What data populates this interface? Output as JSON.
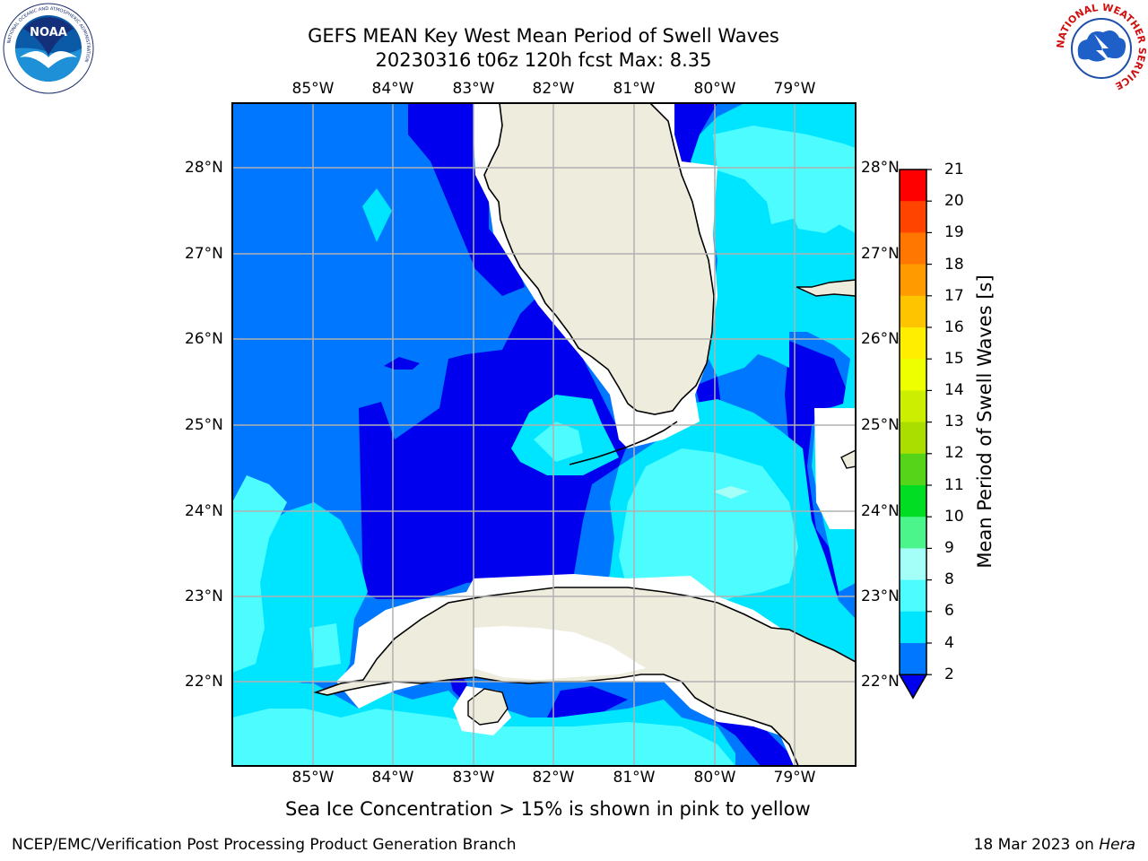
{
  "title_line1": "GEFS MEAN Key West Mean Period of Swell Waves",
  "title_line2": "20230316 t06z 120h fcst   Max: 8.35",
  "logos": {
    "noaa_text": "NOAA",
    "noaa_ring_text": "NATIONAL OCEANIC AND ATMOSPHERIC ADMINISTRATION",
    "noaa_ring_text_bottom": "U.S. DEPARTMENT OF COMMERCE",
    "nws_ring_text": "NATIONAL WEATHER SERVICE"
  },
  "map": {
    "lon_labels": [
      "85°W",
      "84°W",
      "83°W",
      "82°W",
      "81°W",
      "80°W",
      "79°W"
    ],
    "lat_labels": [
      "28°N",
      "27°N",
      "26°N",
      "25°N",
      "24°N",
      "23°N",
      "22°N"
    ],
    "lon_range": [
      -86.0,
      -78.3
    ],
    "lat_range": [
      21.0,
      28.8
    ],
    "colors": {
      "land": "#eeecdc",
      "missing": "#ffffff",
      "grid": "#b0b0b0",
      "coast": "#000000"
    }
  },
  "colorbar": {
    "label": "Mean Period of Swell Waves [s]",
    "ticks": [
      "21",
      "20",
      "19",
      "18",
      "17",
      "16",
      "15",
      "14",
      "13",
      "12",
      "11",
      "10",
      "9",
      "8",
      "6",
      "4",
      "2"
    ],
    "bins": [
      {
        "from": 2,
        "to": 4,
        "color": "#0077ff"
      },
      {
        "from": 4,
        "to": 6,
        "color": "#00e5ff"
      },
      {
        "from": 6,
        "to": 8,
        "color": "#4dfcff"
      },
      {
        "from": 8,
        "to": 9,
        "color": "#a3fff7"
      },
      {
        "from": 9,
        "to": 10,
        "color": "#4cf58c"
      },
      {
        "from": 10,
        "to": 11,
        "color": "#00dd22"
      },
      {
        "from": 11,
        "to": 12,
        "color": "#55d41a"
      },
      {
        "from": 12,
        "to": 13,
        "color": "#aadd00"
      },
      {
        "from": 13,
        "to": 14,
        "color": "#ccee00"
      },
      {
        "from": 14,
        "to": 15,
        "color": "#eeff00"
      },
      {
        "from": 15,
        "to": 16,
        "color": "#ffee00"
      },
      {
        "from": 16,
        "to": 17,
        "color": "#ffc400"
      },
      {
        "from": 17,
        "to": 18,
        "color": "#ff9a00"
      },
      {
        "from": 18,
        "to": 19,
        "color": "#ff7700"
      },
      {
        "from": 19,
        "to": 20,
        "color": "#ff4400"
      },
      {
        "from": 20,
        "to": 21,
        "color": "#ff0000"
      }
    ],
    "under_color": "#0000ee"
  },
  "note": "Sea Ice Concentration > 15% is shown in pink to yellow",
  "footer_left": "NCEP/EMC/Verification Post Processing Product Generation Branch",
  "footer_date": "18 Mar 2023 on",
  "footer_host": "Hera"
}
